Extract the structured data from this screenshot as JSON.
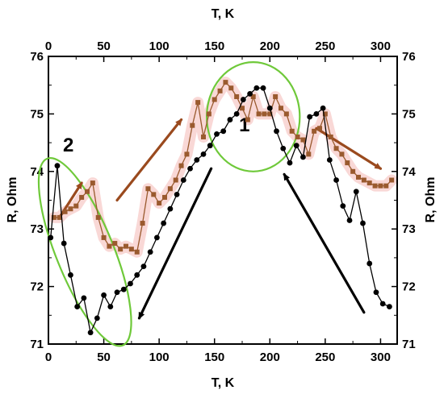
{
  "chart_data": {
    "type": "line",
    "xlabel_bottom": "T, K",
    "xlabel_top": "T, K",
    "ylabel_left": "R, Ohm",
    "ylabel_right": "R, Ohm",
    "xlim": [
      0,
      315
    ],
    "ylim": [
      71,
      76
    ],
    "x_ticks": [
      0,
      50,
      100,
      150,
      200,
      250,
      300
    ],
    "y_ticks": [
      71,
      72,
      73,
      74,
      75,
      76
    ],
    "grid": false,
    "series": [
      {
        "marker": "square",
        "color": "#9a5a2e",
        "x": [
          5,
          10,
          15,
          20,
          25,
          30,
          35,
          40,
          45,
          50,
          55,
          60,
          65,
          70,
          75,
          80,
          85,
          90,
          95,
          100,
          105,
          110,
          115,
          120,
          125,
          130,
          135,
          140,
          145,
          150,
          155,
          160,
          165,
          170,
          175,
          180,
          185,
          190,
          195,
          200,
          205,
          210,
          215,
          220,
          225,
          230,
          235,
          240,
          245,
          250,
          255,
          260,
          265,
          270,
          275,
          280,
          285,
          290,
          295,
          300,
          305,
          310
        ],
        "y": [
          73.2,
          73.2,
          73.3,
          73.35,
          73.4,
          73.55,
          73.65,
          73.8,
          73.2,
          72.85,
          72.7,
          72.75,
          72.65,
          72.7,
          72.65,
          72.6,
          73.1,
          73.7,
          73.6,
          73.45,
          73.55,
          73.7,
          73.85,
          74.1,
          74.3,
          74.8,
          75.2,
          74.6,
          75.0,
          75.25,
          75.4,
          75.55,
          75.45,
          75.3,
          75.1,
          74.9,
          75.3,
          75.0,
          75.0,
          75.0,
          75.3,
          75.1,
          75.0,
          74.7,
          74.6,
          74.55,
          74.3,
          74.7,
          74.75,
          75.0,
          74.6,
          74.4,
          74.3,
          74.15,
          74.0,
          73.9,
          73.85,
          73.8,
          73.75,
          73.75,
          73.75,
          73.85
        ]
      },
      {
        "marker": "circle",
        "color": "#000000",
        "x": [
          2,
          8,
          14,
          20,
          26,
          32,
          38,
          44,
          50,
          56,
          62,
          68,
          74,
          80,
          86,
          92,
          98,
          104,
          110,
          116,
          122,
          128,
          134,
          140,
          146,
          152,
          158,
          164,
          170,
          176,
          182,
          188,
          194,
          200,
          206,
          212,
          218,
          224,
          230,
          236,
          242,
          248,
          254,
          260,
          266,
          272,
          278,
          284,
          290,
          296,
          302,
          308
        ],
        "y": [
          72.85,
          74.1,
          72.75,
          72.2,
          71.65,
          71.8,
          71.2,
          71.45,
          71.85,
          71.65,
          71.9,
          71.95,
          72.05,
          72.2,
          72.35,
          72.6,
          72.85,
          73.1,
          73.35,
          73.6,
          73.85,
          74.05,
          74.2,
          74.3,
          74.45,
          74.65,
          74.7,
          74.9,
          75.0,
          75.25,
          75.35,
          75.45,
          75.45,
          75.1,
          74.7,
          74.4,
          74.15,
          74.45,
          74.25,
          74.95,
          75.0,
          75.1,
          74.2,
          73.85,
          73.4,
          73.15,
          73.65,
          73.1,
          72.4,
          71.9,
          71.7,
          71.65
        ]
      }
    ],
    "annotations": {
      "labels": [
        "1",
        "2"
      ],
      "ellipses": [
        {
          "cx": 185,
          "cy": 74.95,
          "rx": 42,
          "ry": 0.95
        },
        {
          "cx": 33,
          "cy": 72.6,
          "rx": 26,
          "ry": 1.75,
          "rotate": -22
        }
      ],
      "arrows": [
        {
          "from": [
            62,
            73.5
          ],
          "to": [
            120,
            74.9
          ],
          "color": "#9a4a1e"
        },
        {
          "from": [
            242,
            74.75
          ],
          "to": [
            300,
            74.05
          ],
          "color": "#9a4a1e"
        },
        {
          "from": [
            10,
            73.2
          ],
          "to": [
            30,
            73.8
          ],
          "color": "#9a4a1e"
        },
        {
          "from": [
            147,
            74.05
          ],
          "to": [
            82,
            71.45
          ],
          "color": "#000000"
        },
        {
          "from": [
            285,
            71.55
          ],
          "to": [
            213,
            73.95
          ],
          "color": "#000000"
        }
      ],
      "label_positions": [
        {
          "text_index": 0,
          "x": 177,
          "y": 74.7
        },
        {
          "text_index": 1,
          "x": 18,
          "y": 74.35
        }
      ]
    }
  }
}
